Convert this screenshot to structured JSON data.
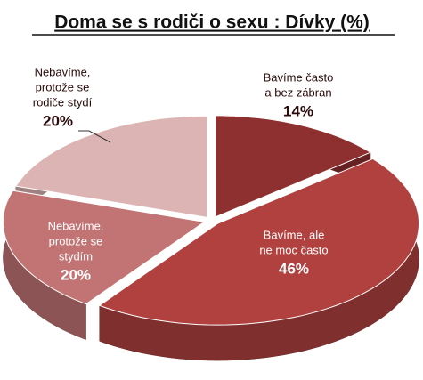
{
  "chart_data": {
    "type": "pie",
    "title": "Doma se s rodiči o sexu : Dívky (%)",
    "categories": [
      [
        "Bavíme často",
        "a bez zábran"
      ],
      [
        "Bavíme, ale",
        "ne moc často"
      ],
      [
        "Nebavíme,",
        "protože se",
        "stydím"
      ],
      [
        "Nebavíme,",
        "protože se",
        "rodiče stydí"
      ]
    ],
    "values": [
      14,
      46,
      20,
      20
    ],
    "value_labels": [
      "14%",
      "46%",
      "20%",
      "20%"
    ],
    "colors": [
      "#8e2f30",
      "#b0413f",
      "#c27474",
      "#dcb4b3"
    ]
  }
}
